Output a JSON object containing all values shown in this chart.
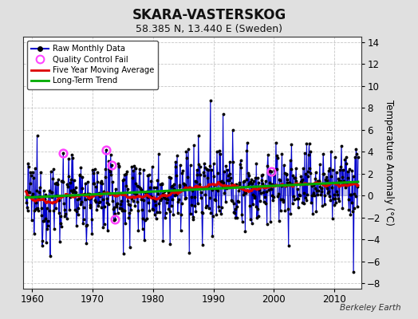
{
  "title": "SKARA-VASTERSKOG",
  "subtitle": "58.385 N, 13.440 E (Sweden)",
  "ylabel": "Temperature Anomaly (°C)",
  "attribution": "Berkeley Earth",
  "xlim": [
    1958.5,
    2014.5
  ],
  "ylim": [
    -8.5,
    14.5
  ],
  "yticks": [
    -8,
    -6,
    -4,
    -2,
    0,
    2,
    4,
    6,
    8,
    10,
    12,
    14
  ],
  "xticks": [
    1960,
    1970,
    1980,
    1990,
    2000,
    2010
  ],
  "bg_color": "#e0e0e0",
  "plot_bg_color": "#ffffff",
  "grid_color": "#c0c0c0",
  "line_color": "#0000cc",
  "fill_color": "#9999dd",
  "marker_color": "#000000",
  "ma_color": "#dd0000",
  "trend_color": "#00aa00",
  "qc_color": "#ff44ff",
  "seed": 12345,
  "start_year": 1959.0,
  "n_months": 660
}
